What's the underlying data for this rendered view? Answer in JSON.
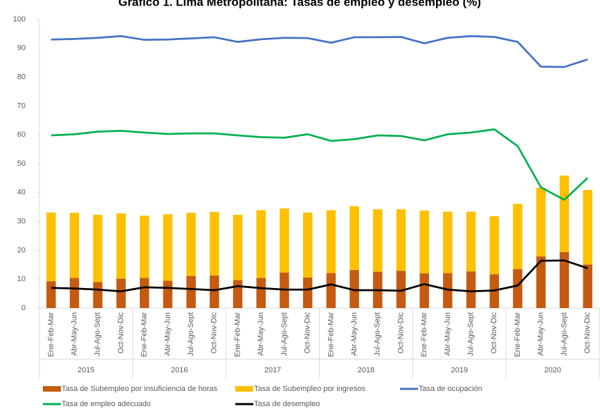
{
  "chart_data": {
    "type": "combo",
    "title": "Gráfico 1. Lima Metropolitana: Tasas de empleo y desempleo (%)",
    "categories": [
      "Ene-Feb-Mar",
      "Abr-May-Jun",
      "Jul-Ago-Sept",
      "Oct-Nov-Dic",
      "Ene-Feb-Mar",
      "Abr-May-Jun",
      "Jul-Ago-Sept",
      "Oct-Nov-Dic",
      "Ene-Feb-Mar",
      "Abr-May-Jun",
      "Jul-Ago-Sept",
      "Oct-Nov-Dic",
      "Ene-Feb-Mar",
      "Abr-May-Jun",
      "Jul-Ago-Sept",
      "Oct-Nov-Dic",
      "Ene-Feb-Mar",
      "Abr-May-Jun",
      "Jul-Ago-Sept",
      "Oct-Nov-Dic",
      "Ene-Feb-Mar",
      "Abr-May-Jun",
      "Jul-Ago-Sept",
      "Oct-Nov-Dic"
    ],
    "year_groups": [
      "2015",
      "2016",
      "2017",
      "2018",
      "2019",
      "2020"
    ],
    "ylim": [
      0,
      100
    ],
    "yticks": [
      0,
      10,
      20,
      30,
      40,
      50,
      60,
      70,
      80,
      90,
      100
    ],
    "grid": false,
    "series": [
      {
        "name": "Tasa de Subempleo por insuficiencia de horas",
        "type": "bar",
        "color": "#c55a11",
        "values": [
          9.3,
          10.4,
          9,
          10.2,
          10.4,
          9.5,
          11.1,
          11.3,
          9.7,
          10.4,
          12.3,
          10.6,
          12.1,
          13.2,
          12.6,
          12.9,
          12,
          12.1,
          12.7,
          11.7,
          13.5,
          17.9,
          19.4,
          15.1
        ]
      },
      {
        "name": "Tasa de Subempleo por ingresos",
        "type": "bar",
        "color": "#ffc000",
        "values": [
          23.8,
          22.6,
          23.3,
          22.6,
          21.6,
          23,
          21.9,
          22,
          22.6,
          23.5,
          22.2,
          22.5,
          21.8,
          22.1,
          21.6,
          21.3,
          21.8,
          21.3,
          20.7,
          20.1,
          22.6,
          23.8,
          26.5,
          25.8
        ]
      },
      {
        "name": "Tasa de ocupación",
        "type": "line",
        "color": "#4472c4",
        "values": [
          93,
          93.2,
          93.6,
          94.2,
          92.9,
          93,
          93.4,
          93.8,
          92.2,
          93.1,
          93.6,
          93.5,
          91.9,
          93.8,
          93.8,
          93.9,
          91.7,
          93.6,
          94.2,
          93.9,
          92.2,
          83.6,
          83.5,
          86.1
        ]
      },
      {
        "name": "Tasa de empleo adecuado",
        "type": "line",
        "color": "#00b050",
        "values": [
          59.8,
          60.2,
          61.1,
          61.4,
          60.8,
          60.3,
          60.5,
          60.5,
          59.8,
          59.2,
          59,
          60.2,
          57.9,
          58.5,
          59.8,
          59.6,
          58.1,
          60.2,
          60.8,
          61.9,
          56.1,
          41.8,
          37.5,
          45.1
        ]
      },
      {
        "name": "Tasa de desempleo",
        "type": "line",
        "color": "#000000",
        "values": [
          7,
          6.8,
          6.4,
          5.8,
          7.2,
          7,
          6.6,
          6.2,
          7.6,
          6.9,
          6.4,
          6.4,
          8.2,
          6.2,
          6.2,
          6,
          8.3,
          6.4,
          5.8,
          6.1,
          7.8,
          16.4,
          16.5,
          13.8
        ]
      }
    ]
  }
}
